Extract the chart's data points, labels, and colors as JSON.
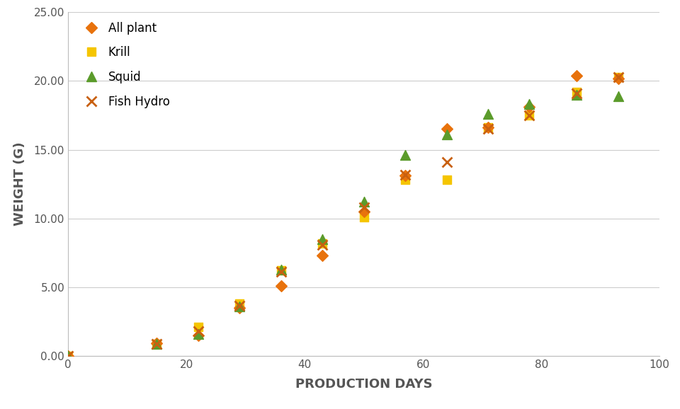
{
  "series": {
    "All plant": {
      "x": [
        0,
        15,
        22,
        29,
        36,
        43,
        50,
        57,
        64,
        71,
        78,
        86,
        93
      ],
      "y": [
        0.0,
        0.9,
        1.5,
        3.5,
        5.1,
        7.3,
        10.5,
        13.1,
        16.5,
        16.6,
        18.1,
        20.4,
        20.2
      ],
      "color": "#E8720C",
      "marker": "D",
      "markersize": 8,
      "zorder": 4
    },
    "Krill": {
      "x": [
        0,
        15,
        22,
        29,
        36,
        43,
        50,
        57,
        64,
        71,
        78,
        86,
        93
      ],
      "y": [
        0.0,
        0.85,
        2.1,
        3.8,
        6.2,
        8.2,
        10.1,
        12.8,
        12.8,
        16.6,
        17.5,
        19.2,
        20.3
      ],
      "color": "#F5C500",
      "marker": "s",
      "markersize": 9,
      "zorder": 3
    },
    "Squid": {
      "x": [
        0,
        15,
        22,
        29,
        36,
        43,
        50,
        57,
        64,
        71,
        78,
        86,
        93
      ],
      "y": [
        0.0,
        0.85,
        1.6,
        3.6,
        6.3,
        8.5,
        11.2,
        14.6,
        16.1,
        17.6,
        18.3,
        19.0,
        18.9
      ],
      "color": "#5B9B2B",
      "marker": "^",
      "markersize": 10,
      "zorder": 5
    },
    "Fish Hydro": {
      "x": [
        0,
        15,
        22,
        29,
        36,
        43,
        50,
        57,
        64,
        71,
        78,
        86,
        93
      ],
      "y": [
        0.0,
        0.85,
        1.8,
        3.65,
        6.1,
        8.1,
        10.8,
        13.2,
        14.1,
        16.5,
        17.5,
        19.1,
        20.3
      ],
      "color": "#C86010",
      "marker": "x",
      "markersize": 10,
      "zorder": 6,
      "markeredgewidth": 2.0
    }
  },
  "xlabel": "PRODUCTION DAYS",
  "ylabel": "WEIGHT (G)",
  "xlim": [
    0,
    100
  ],
  "ylim": [
    0.0,
    25.0
  ],
  "yticks": [
    0.0,
    5.0,
    10.0,
    15.0,
    20.0,
    25.0
  ],
  "xticks": [
    0,
    20,
    40,
    60,
    80,
    100
  ],
  "background_color": "#ffffff",
  "legend_order": [
    "All plant",
    "Krill",
    "Squid",
    "Fish Hydro"
  ],
  "legend_fontsize": 12,
  "axis_label_fontsize": 13,
  "tick_fontsize": 11
}
